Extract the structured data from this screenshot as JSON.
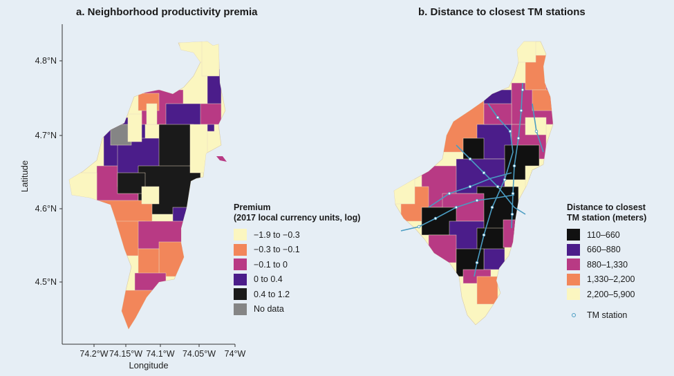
{
  "panel_a": {
    "title": "a. Neighborhood productivity premia",
    "x_axis": {
      "label": "Longitude",
      "ticks": [
        "74.2°W",
        "74.15°W",
        "74.1°W",
        "74.05°W",
        "74°W"
      ]
    },
    "y_axis": {
      "label": "Latitude",
      "ticks": [
        "4.8°N",
        "4.7°N",
        "4.6°N",
        "4.5°N"
      ]
    },
    "legend": {
      "title_line1": "Premium",
      "title_line2": "(2017 local currency units, log)",
      "items": [
        {
          "label": "−1.9 to −0.3",
          "color": "#fbf6c0"
        },
        {
          "label": "−0.3 to −0.1",
          "color": "#f2865a"
        },
        {
          "label": "−0.1 to 0",
          "color": "#b83a84"
        },
        {
          "label": "0 to 0.4",
          "color": "#4b1d8a"
        },
        {
          "label": "0.4 to 1.2",
          "color": "#1a1a1a"
        },
        {
          "label": "No data",
          "color": "#858585"
        }
      ]
    }
  },
  "panel_b": {
    "title": "b. Distance to closest TM stations",
    "legend": {
      "title_line1": "Distance to closest",
      "title_line2": "TM station (meters)",
      "items": [
        {
          "label": "110–660",
          "color": "#111111"
        },
        {
          "label": "660–880",
          "color": "#4b1d8a"
        },
        {
          "label": "880–1,330",
          "color": "#b83a84"
        },
        {
          "label": "1,330–2,200",
          "color": "#f2865a"
        },
        {
          "label": "2,200–5,900",
          "color": "#fbf6c0"
        }
      ],
      "station_label": "TM station",
      "station_color": "#4a9cc2"
    }
  }
}
